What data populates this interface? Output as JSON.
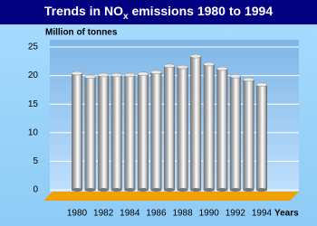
{
  "chart_data": {
    "type": "bar",
    "title_parts": [
      "Trends in NO",
      "x",
      " emissions 1980 to 1994"
    ],
    "y_axis_label": "Million of tonnes",
    "x_axis_label": "Years",
    "categories": [
      "1980",
      null,
      "1982",
      null,
      "1984",
      null,
      "1986",
      null,
      "1988",
      null,
      "1990",
      null,
      "1992",
      null,
      "1994"
    ],
    "values": [
      20.4,
      19.8,
      20.1,
      20.1,
      20.1,
      20.3,
      20.6,
      21.7,
      21.5,
      23.4,
      22.0,
      21.2,
      19.9,
      19.3,
      18.4
    ],
    "color": "#c0c0c0",
    "ylim": [
      0,
      25
    ],
    "yticks": [
      0,
      5,
      10,
      15,
      20,
      25
    ],
    "grid": true
  }
}
